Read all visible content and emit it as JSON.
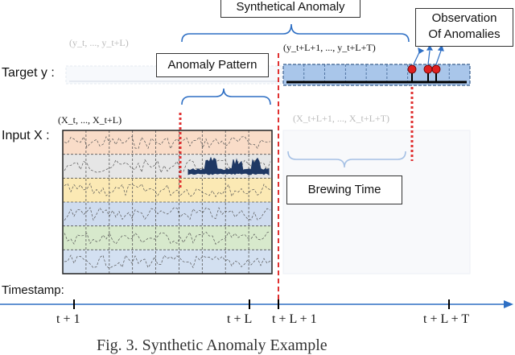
{
  "labels": {
    "synthetical_anomaly": "Synthetical Anomaly",
    "observation": "Observation\nOf Anomalies",
    "anomaly_pattern": "Anomaly Pattern",
    "brewing_time": "Brewing Time",
    "target": "Target y :",
    "input": "Input X :",
    "timestamp": "Timestamp:",
    "y_past": "(y_t, ..., y_t+L)",
    "y_future": "(y_t+L+1, ..., y_t+L+T)",
    "x_past": "(X_t, ..., X_t+L)",
    "x_future": "(X_t+L+1, ..., X_t+L+T)",
    "caption": "Fig. 3. Synthetic Anomaly Example"
  },
  "ticks": [
    "t + 1",
    "t + L",
    "t + L + 1",
    "t + L + T"
  ],
  "colors": {
    "band_orange": "#f9dcc8",
    "band_grey": "#e6e6e6",
    "band_yellow": "#fbe9b4",
    "band_blue": "#cfdcef",
    "band_green": "#d7e9cc",
    "band_lightblue": "#d3e0f1",
    "target_fill": "#a9c6ea",
    "anomaly_wave": "#1f3864",
    "dotted_red": "#e03030",
    "bracket_blue": "#2e6fc4"
  }
}
